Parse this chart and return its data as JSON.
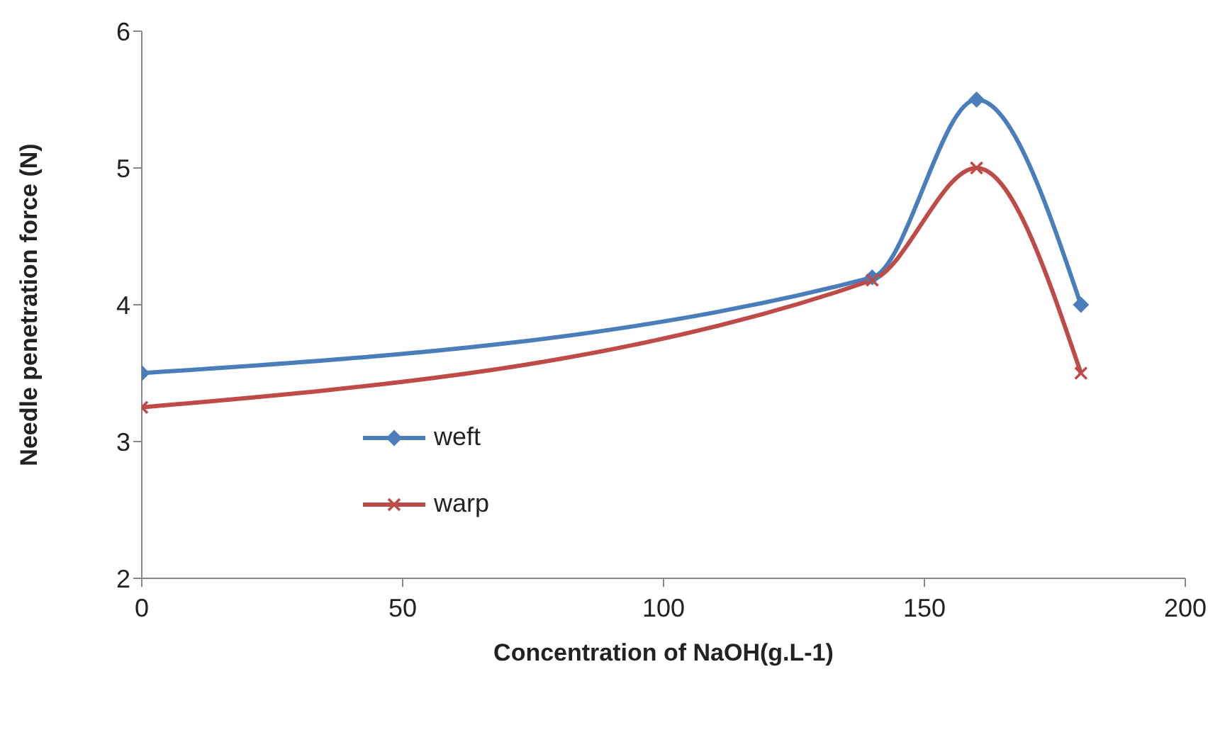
{
  "chart_data": {
    "type": "line",
    "xlabel": "Concentration of NaOH(g.L-1)",
    "ylabel": "Needle penetration force (N)",
    "x": [
      0,
      140,
      160,
      180
    ],
    "series": [
      {
        "name": "weft",
        "color": "#4a7ebb",
        "marker": "diamond",
        "values": [
          3.5,
          4.2,
          5.5,
          4.0
        ]
      },
      {
        "name": "warp",
        "color": "#be4b48",
        "marker": "cross",
        "values": [
          3.25,
          4.18,
          5.0,
          3.5
        ]
      }
    ],
    "xlim": [
      0,
      200
    ],
    "xticks": [
      0,
      50,
      100,
      150,
      200
    ],
    "ylim": [
      2,
      6
    ],
    "yticks": [
      2,
      3,
      4,
      5,
      6
    ],
    "grid": false,
    "legend": "bottom left"
  }
}
